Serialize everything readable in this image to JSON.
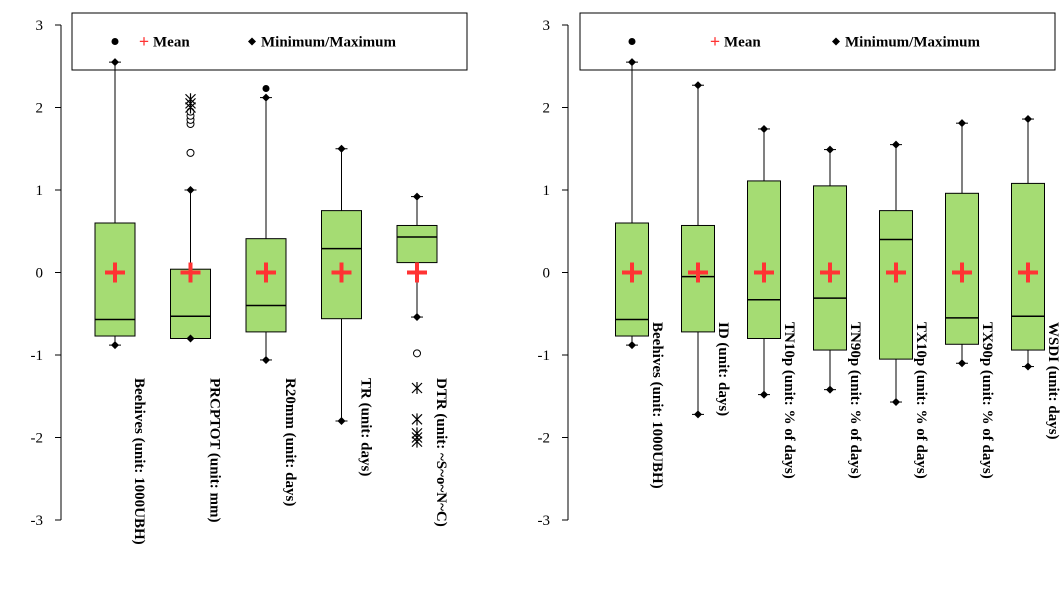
{
  "colors": {
    "box_fill": "#a5dc73",
    "mean_marker": "#ff3333",
    "whisker": "#000000"
  },
  "chart_data": [
    {
      "type": "boxplot",
      "ylim": [
        -3,
        3
      ],
      "yticks": [
        -3,
        -2,
        -1,
        0,
        1,
        2,
        3
      ],
      "legend": {
        "position": "top",
        "mean_label": "Mean",
        "minmax_label": "Minimum/Maximum"
      },
      "categories": [
        "Beehives (unit: 1000UBH)",
        "PRCPTOT (unit: mm)",
        "R20mm (unit: days)",
        "TR (unit: days)",
        "DTR (unit: ~S~o~N~C)"
      ],
      "boxes": [
        {
          "label": "Beehives (unit: 1000UBH)",
          "min": -0.88,
          "q1": -0.77,
          "median": -0.57,
          "q3": 0.6,
          "max": 2.55,
          "mean": 0,
          "outliers": [
            {
              "y": 2.8,
              "marker": "filled-circle"
            }
          ]
        },
        {
          "label": "PRCPTOT (unit: mm)",
          "min": -0.8,
          "q1": -0.8,
          "median": -0.53,
          "q3": 0.04,
          "max": 1.0,
          "mean": 0,
          "outliers": [
            {
              "y": 1.45,
              "marker": "open-circle"
            },
            {
              "y": 1.8,
              "marker": "open-circle"
            },
            {
              "y": 1.85,
              "marker": "open-circle"
            },
            {
              "y": 1.9,
              "marker": "open-circle"
            },
            {
              "y": 1.95,
              "marker": "open-circle"
            },
            {
              "y": 2.0,
              "marker": "star"
            },
            {
              "y": 2.05,
              "marker": "star"
            },
            {
              "y": 2.1,
              "marker": "star"
            }
          ]
        },
        {
          "label": "R20mm (unit: days)",
          "min": -1.06,
          "q1": -0.72,
          "median": -0.4,
          "q3": 0.41,
          "max": 2.12,
          "mean": 0,
          "outliers": [
            {
              "y": 2.23,
              "marker": "filled-circle"
            }
          ]
        },
        {
          "label": "TR (unit: days)",
          "min": -1.8,
          "q1": -0.56,
          "median": 0.29,
          "q3": 0.75,
          "max": 1.5,
          "mean": 0,
          "outliers": []
        },
        {
          "label": "DTR (unit: ~S~o~N~C)",
          "min": -0.54,
          "q1": 0.12,
          "median": 0.43,
          "q3": 0.57,
          "max": 0.92,
          "mean": 0,
          "outliers": [
            {
              "y": -0.98,
              "marker": "open-circle"
            },
            {
              "y": -1.4,
              "marker": "star"
            },
            {
              "y": -1.78,
              "marker": "star"
            },
            {
              "y": -1.95,
              "marker": "star"
            },
            {
              "y": -2.0,
              "marker": "star"
            },
            {
              "y": -2.05,
              "marker": "star"
            }
          ]
        }
      ]
    },
    {
      "type": "boxplot",
      "ylim": [
        -3,
        3
      ],
      "yticks": [
        -3,
        -2,
        -1,
        0,
        1,
        2,
        3
      ],
      "legend": {
        "position": "top",
        "mean_label": "Mean",
        "minmax_label": "Minimum/Maximum"
      },
      "categories": [
        "Beehives (unit: 1000UBH)",
        "ID (unit: days)",
        "TN10p (unit: % of days)",
        "TN90p (unit: % of days)",
        "TX10p (unit: % of days)",
        "TX90p (unit: % of days)",
        "WSDI (unit: days)"
      ],
      "boxes": [
        {
          "label": "Beehives (unit: 1000UBH)",
          "min": -0.88,
          "q1": -0.77,
          "median": -0.57,
          "q3": 0.6,
          "max": 2.55,
          "mean": 0,
          "outliers": [
            {
              "y": 2.8,
              "marker": "filled-circle"
            }
          ]
        },
        {
          "label": "ID (unit: days)",
          "min": -1.72,
          "q1": -0.72,
          "median": -0.05,
          "q3": 0.57,
          "max": 2.27,
          "mean": 0,
          "outliers": []
        },
        {
          "label": "TN10p (unit: % of days)",
          "min": -1.48,
          "q1": -0.8,
          "median": -0.33,
          "q3": 1.11,
          "max": 1.74,
          "mean": 0,
          "outliers": []
        },
        {
          "label": "TN90p (unit: % of days)",
          "min": -1.42,
          "q1": -0.94,
          "median": -0.31,
          "q3": 1.05,
          "max": 1.49,
          "mean": 0,
          "outliers": []
        },
        {
          "label": "TX10p (unit: % of days)",
          "min": -1.57,
          "q1": -1.05,
          "median": 0.4,
          "q3": 0.75,
          "max": 1.55,
          "mean": 0,
          "outliers": []
        },
        {
          "label": "TX90p (unit: % of days)",
          "min": -1.1,
          "q1": -0.87,
          "median": -0.55,
          "q3": 0.96,
          "max": 1.81,
          "mean": 0,
          "outliers": []
        },
        {
          "label": "WSDI (unit: days)",
          "min": -1.14,
          "q1": -0.94,
          "median": -0.53,
          "q3": 1.08,
          "max": 1.86,
          "mean": 0,
          "outliers": []
        }
      ]
    }
  ]
}
